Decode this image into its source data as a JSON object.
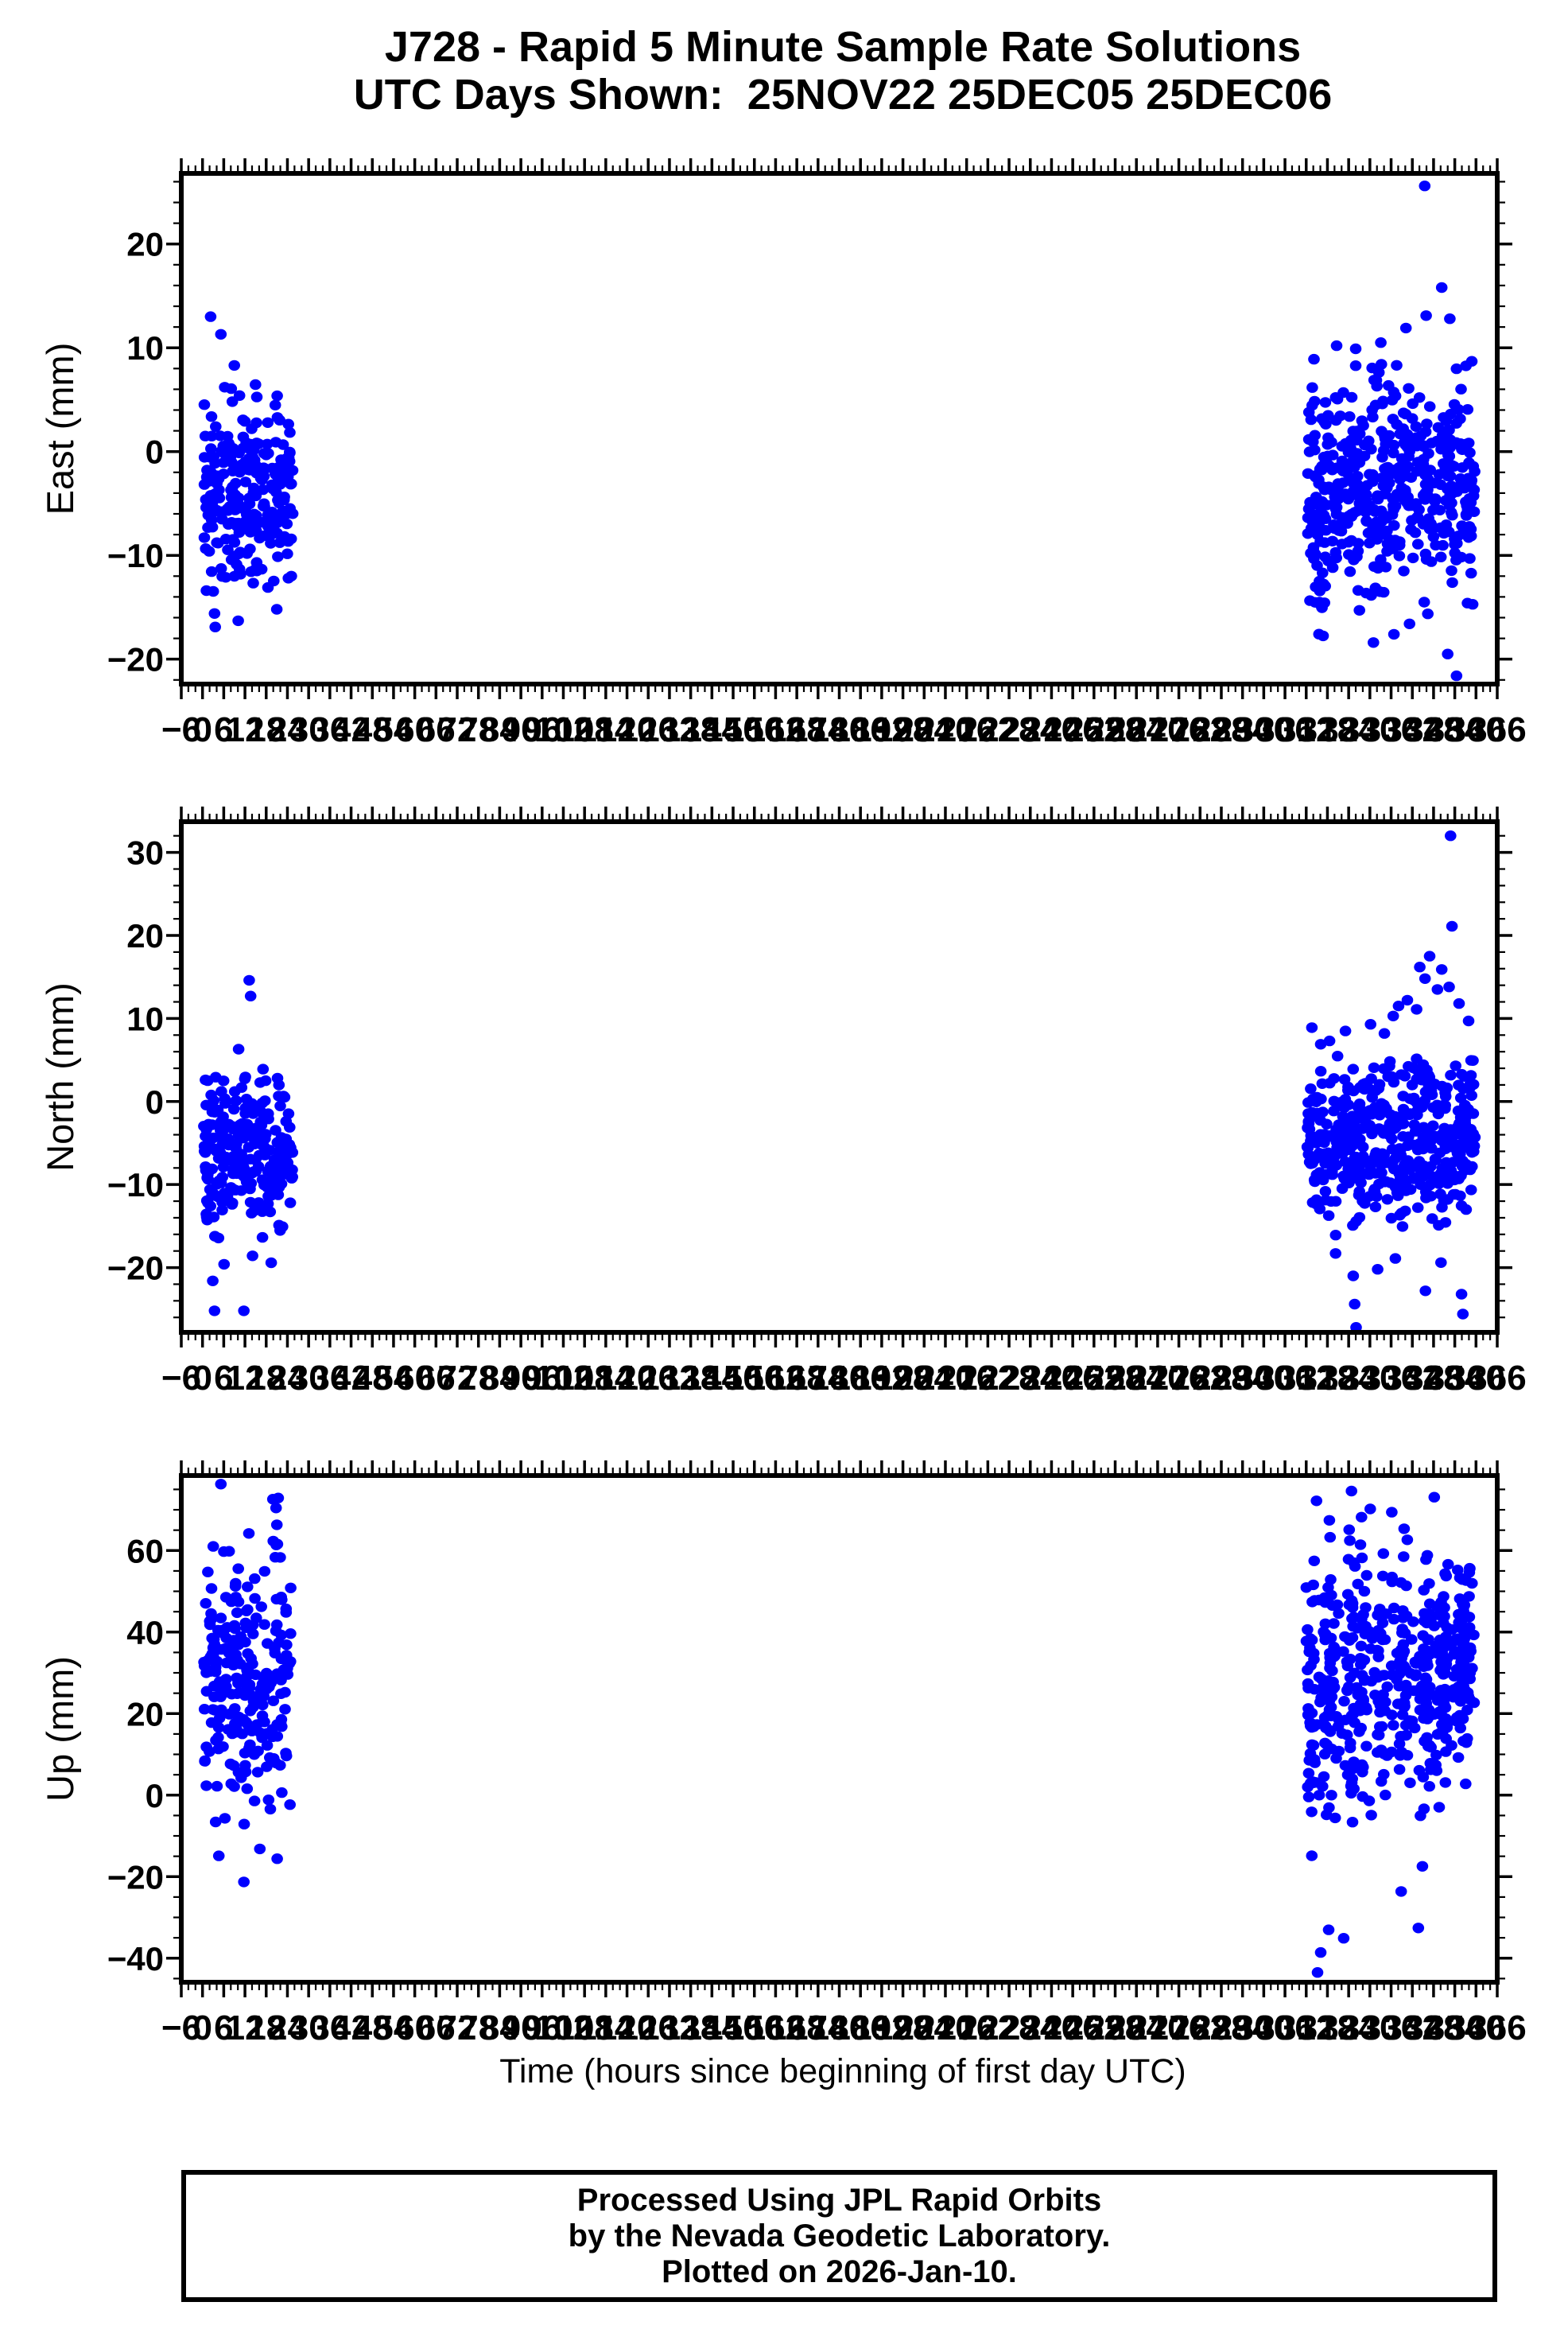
{
  "chart_data": {
    "type": "scatter",
    "station": "J728",
    "title": "J728 - Rapid 5 Minute Sample Rate Solutions",
    "subtitle": "UTC Days Shown:  25NOV22 25DEC05 25DEC06",
    "days_shown": [
      "25NOV22",
      "25DEC05",
      "25DEC06"
    ],
    "marker": {
      "shape": "dot",
      "color": "#0000ff",
      "radius_px": 7
    },
    "axis_color": "#000000",
    "grid": "off",
    "legend": "none",
    "x_axis": {
      "label": "Time (hours since beginning of first day UTC)",
      "min": -6,
      "max": 366,
      "major_tick": 6,
      "minor_tick": 2,
      "tick_label_values": [
        -6,
        0,
        6,
        12,
        18,
        24,
        30,
        36,
        42,
        48,
        54,
        60,
        66,
        72,
        78,
        84,
        90,
        96,
        102,
        108,
        114,
        120,
        126,
        132,
        138,
        144,
        150,
        156,
        162,
        168,
        174,
        180,
        186,
        192,
        198,
        204,
        210,
        216,
        222,
        228,
        234,
        240,
        246,
        252,
        258,
        264,
        270,
        276,
        282,
        288,
        294,
        300,
        306,
        312,
        318,
        324,
        330,
        336,
        342,
        348,
        354,
        360,
        366
      ]
    },
    "panels": [
      {
        "id": "east",
        "ylabel": "East (mm)",
        "ymin": -22.4,
        "ymax": 26.8,
        "y_minor_tick": 2,
        "ytick_labels": [
          20,
          10,
          0,
          -10,
          -20
        ],
        "clusters": [
          {
            "x0": 0.3,
            "x1": 25.5,
            "n": 250,
            "mean": -3.8,
            "sd": 4.4,
            "lo": -17.5,
            "hi": 8.6
          },
          {
            "x0": 312.3,
            "x1": 359.7,
            "n": 470,
            "mean": -3.4,
            "sd": 5.0,
            "lo": -16.0,
            "hi": 9.0
          },
          {
            "x": 316.5,
            "xj": 1.0,
            "n": 12,
            "mean": -13,
            "sd": 4,
            "lo": -20.5,
            "hi": -6
          }
        ],
        "outliers": [
          [
            2.3,
            13.0
          ],
          [
            5.2,
            11.3
          ],
          [
            9.0,
            8.3
          ],
          [
            3.4,
            -15.6
          ],
          [
            3.6,
            -16.9
          ],
          [
            10.1,
            -16.3
          ],
          [
            21.0,
            -15.2
          ],
          [
            345.5,
            25.6
          ],
          [
            350.3,
            15.8
          ],
          [
            352.0,
            -19.5
          ],
          [
            354.5,
            -21.6
          ],
          [
            336.8,
            -17.6
          ],
          [
            341.2,
            -16.6
          ],
          [
            357.6,
            -14.6
          ],
          [
            331.0,
            -18.4
          ],
          [
            320.6,
            10.2
          ],
          [
            340.2,
            11.9
          ],
          [
            352.6,
            12.8
          ],
          [
            345.9,
            13.1
          ],
          [
            333.1,
            10.5
          ],
          [
            326.0,
            9.9
          ],
          [
            314.2,
            8.9
          ],
          [
            358.8,
            8.7
          ]
        ]
      },
      {
        "id": "north",
        "ylabel": "North (mm)",
        "ymin": -27.8,
        "ymax": 33.7,
        "y_minor_tick": 2,
        "ytick_labels": [
          30,
          20,
          10,
          0,
          -10,
          -20
        ],
        "clusters": [
          {
            "x0": 0.3,
            "x1": 25.5,
            "n": 250,
            "mean": -6.2,
            "sd": 4.8,
            "lo": -20.5,
            "hi": 3.2
          },
          {
            "x0": 312.3,
            "x1": 359.7,
            "n": 470,
            "mean": -4.8,
            "sd": 4.9,
            "lo": -16.5,
            "hi": 5.5
          }
        ],
        "outliers": [
          [
            13.2,
            14.6
          ],
          [
            13.6,
            12.7
          ],
          [
            10.2,
            6.3
          ],
          [
            17.1,
            3.9
          ],
          [
            3.4,
            -25.2
          ],
          [
            11.7,
            -25.2
          ],
          [
            2.9,
            -21.6
          ],
          [
            6.1,
            -19.6
          ],
          [
            344.1,
            16.2
          ],
          [
            345.6,
            14.8
          ],
          [
            346.9,
            17.5
          ],
          [
            349.1,
            13.5
          ],
          [
            350.3,
            15.9
          ],
          [
            352.4,
            13.8
          ],
          [
            338.1,
            11.5
          ],
          [
            340.6,
            12.2
          ],
          [
            343.2,
            11.1
          ],
          [
            336.6,
            10.3
          ],
          [
            355.2,
            11.8
          ],
          [
            357.9,
            9.7
          ],
          [
            313.6,
            8.9
          ],
          [
            316.1,
            6.9
          ],
          [
            318.6,
            7.3
          ],
          [
            323.1,
            8.5
          ],
          [
            330.2,
            9.3
          ],
          [
            334.1,
            8.2
          ],
          [
            352.8,
            32.0
          ],
          [
            353.2,
            21.1
          ],
          [
            325.3,
            -21.0
          ],
          [
            325.7,
            -24.4
          ],
          [
            326.1,
            -27.2
          ],
          [
            345.7,
            -22.8
          ],
          [
            355.9,
            -23.2
          ],
          [
            356.3,
            -25.6
          ],
          [
            337.2,
            -18.9
          ],
          [
            320.3,
            -18.3
          ],
          [
            350.1,
            -19.4
          ],
          [
            332.2,
            -20.2
          ]
        ]
      },
      {
        "id": "up",
        "ylabel": "Up (mm)",
        "ymin": -45.9,
        "ymax": 78.4,
        "y_minor_tick": 5,
        "ytick_labels": [
          60,
          40,
          20,
          0,
          -20,
          -40
        ],
        "clusters": [
          {
            "x0": 0.4,
            "x1": 25.0,
            "n": 190,
            "mean": 27,
            "sd": 14,
            "lo": -12,
            "hi": 62
          },
          {
            "x": 2.6,
            "xj": 0.9,
            "n": 16,
            "mean": 45,
            "sd": 12,
            "lo": 20,
            "hi": 62
          },
          {
            "x": 9.3,
            "xj": 1.0,
            "n": 18,
            "mean": 35,
            "sd": 15,
            "lo": 5,
            "hi": 58
          },
          {
            "x": 20.8,
            "xj": 1.2,
            "n": 10,
            "mean": 55,
            "sd": 12,
            "lo": 35,
            "hi": 73
          },
          {
            "x0": 312.5,
            "x1": 359.5,
            "n": 260,
            "mean": 25,
            "sd": 15,
            "lo": -20,
            "hi": 58
          },
          {
            "x": 313.2,
            "xj": 1.2,
            "n": 26,
            "mean": 30,
            "sd": 22,
            "lo": -38,
            "hi": 73
          },
          {
            "x": 318.2,
            "xj": 1.3,
            "n": 30,
            "mean": 22,
            "sd": 20,
            "lo": -35,
            "hi": 68
          },
          {
            "x": 324.6,
            "xj": 1.2,
            "n": 26,
            "mean": 30,
            "sd": 20,
            "lo": -18,
            "hi": 74
          },
          {
            "x": 328.2,
            "xj": 1.0,
            "n": 22,
            "mean": 35,
            "sd": 16,
            "lo": -5,
            "hi": 70
          },
          {
            "x": 333.2,
            "xj": 1.2,
            "n": 26,
            "mean": 25,
            "sd": 18,
            "lo": -33,
            "hi": 66
          },
          {
            "x": 339.6,
            "xj": 1.3,
            "n": 28,
            "mean": 28,
            "sd": 20,
            "lo": -28,
            "hi": 72
          },
          {
            "x": 346.1,
            "xj": 1.2,
            "n": 30,
            "mean": 32,
            "sd": 18,
            "lo": -25,
            "hi": 70
          },
          {
            "x": 351.2,
            "xj": 1.3,
            "n": 36,
            "mean": 35,
            "sd": 14,
            "lo": -10,
            "hi": 62
          },
          {
            "x": 356.6,
            "xj": 1.8,
            "n": 55,
            "mean": 40,
            "sd": 10,
            "lo": 6,
            "hi": 58
          }
        ],
        "outliers": [
          [
            5.2,
            76.3
          ],
          [
            19.9,
            72.6
          ],
          [
            21.4,
            72.9
          ],
          [
            13.1,
            64.2
          ],
          [
            11.7,
            -21.3
          ],
          [
            4.6,
            -14.9
          ],
          [
            16.2,
            -13.2
          ],
          [
            21.1,
            -15.6
          ],
          [
            315.2,
            -43.5
          ],
          [
            316.1,
            -38.6
          ],
          [
            322.6,
            -35.1
          ],
          [
            343.7,
            -32.6
          ],
          [
            324.8,
            74.6
          ],
          [
            330.1,
            70.2
          ],
          [
            348.2,
            73.1
          ],
          [
            314.9,
            72.2
          ],
          [
            336.2,
            69.4
          ]
        ]
      }
    ]
  },
  "footer": {
    "line1": "Processed Using JPL Rapid Orbits",
    "line2": "by the Nevada Geodetic Laboratory.",
    "line3": "Plotted on 2026-Jan-10."
  }
}
